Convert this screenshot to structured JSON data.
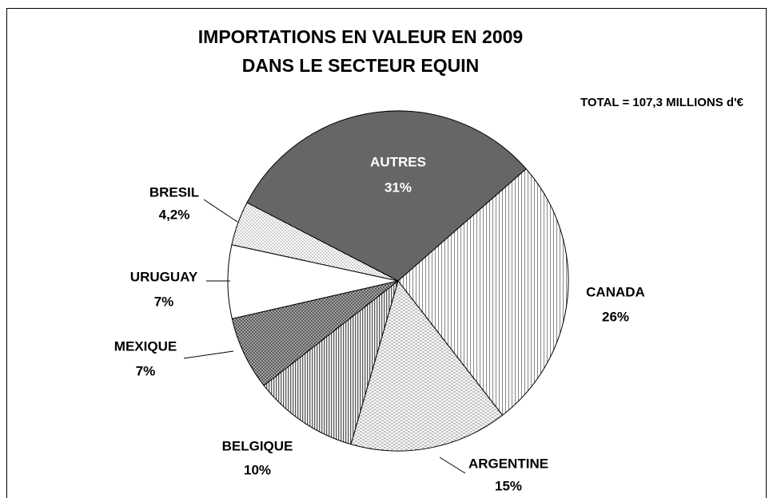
{
  "chart_data": {
    "type": "pie",
    "title": [
      "IMPORTATIONS EN VALEUR EN 2009",
      "DANS LE SECTEUR EQUIN"
    ],
    "annotation": "TOTAL = 107,3 MILLIONS d'€",
    "categories": [
      "AUTRES",
      "CANADA",
      "ARGENTINE",
      "BELGIQUE",
      "MEXIQUE",
      "URUGUAY",
      "BRESIL"
    ],
    "values": [
      31,
      26,
      15,
      10,
      7,
      7,
      4.2
    ],
    "value_labels": [
      "31%",
      "26%",
      "15%",
      "10%",
      "7%",
      "7%",
      "4,2%"
    ]
  }
}
